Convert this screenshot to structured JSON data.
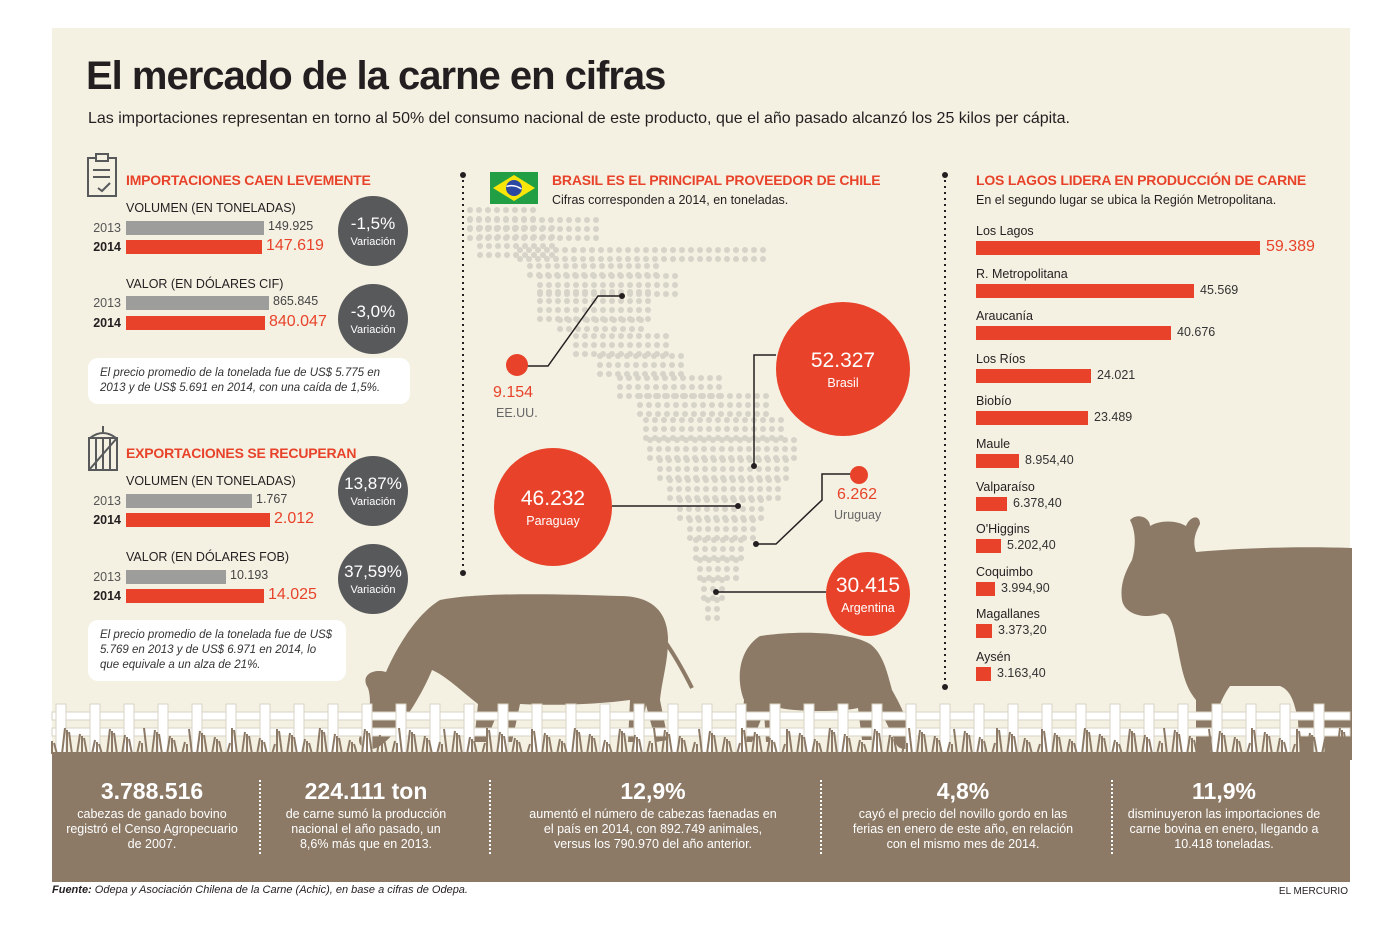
{
  "title": "El mercado de la carne en cifras",
  "subtitle": "Las importaciones representan en torno al 50% del consumo nacional de este producto, que el año pasado alcanzó los 25 kilos per cápita.",
  "imports": {
    "heading": "IMPORTACIONES CAEN LEVEMENTE",
    "volume_label": "VOLUMEN (EN TONELADAS)",
    "value_label": "VALOR (EN DÓLARES CIF)",
    "note": "El precio promedio de la tonelada fue de US$ 5.775 en 2013 y de US$ 5.691 en 2014, con una caída de 1,5%."
  },
  "exports": {
    "heading": "EXPORTACIONES SE RECUPERAN",
    "volume_label": "VOLUMEN (EN TONELADAS)",
    "value_label": "VALOR (EN DÓLARES FOB)",
    "note": "El precio promedio de la tonelada fue de US$ 5.769 en 2013 y de US$ 6.971 en 2014, lo que equivale a un alza de 21%."
  },
  "variation_label": "Variación",
  "suppliers": {
    "heading": "BRASIL ES EL PRINCIPAL PROVEEDOR DE CHILE",
    "subheading": "Cifras corresponden a 2014, en toneladas."
  },
  "regions": {
    "heading": "LOS LAGOS LIDERA EN PRODUCCIÓN DE CARNE",
    "subheading": "En el segundo lugar se ubica la Región Metropolitana."
  },
  "chart_data": [
    {
      "type": "bar",
      "title": "IMPORTACIONES CAEN LEVEMENTE",
      "subtitle": "VOLUMEN (EN TONELADAS)",
      "categories": [
        "2013",
        "2014"
      ],
      "values": [
        149925,
        147619
      ],
      "labels": [
        "149.925",
        "147.619"
      ],
      "variation": "-1,5%"
    },
    {
      "type": "bar",
      "title": "IMPORTACIONES CAEN LEVEMENTE",
      "subtitle": "VALOR (EN DÓLARES CIF)",
      "categories": [
        "2013",
        "2014"
      ],
      "values": [
        865845,
        840047
      ],
      "labels": [
        "865.845",
        "840.047"
      ],
      "variation": "-3,0%"
    },
    {
      "type": "bar",
      "title": "EXPORTACIONES SE RECUPERAN",
      "subtitle": "VOLUMEN (EN TONELADAS)",
      "categories": [
        "2013",
        "2014"
      ],
      "values": [
        1767,
        2012
      ],
      "labels": [
        "1.767",
        "2.012"
      ],
      "variation": "13,87%"
    },
    {
      "type": "bar",
      "title": "EXPORTACIONES SE RECUPERAN",
      "subtitle": "VALOR (EN DÓLARES FOB)",
      "categories": [
        "2013",
        "2014"
      ],
      "values": [
        10193,
        14025
      ],
      "labels": [
        "10.193",
        "14.025"
      ],
      "variation": "37,59%"
    },
    {
      "type": "scatter",
      "title": "BRASIL ES EL PRINCIPAL PROVEEDOR DE CHILE",
      "subtitle": "Cifras corresponden a 2014, en toneladas.",
      "categories": [
        "Brasil",
        "Paraguay",
        "Argentina",
        "EE.UU.",
        "Uruguay"
      ],
      "values": [
        52327,
        46232,
        30415,
        9154,
        6262
      ],
      "labels": [
        "52.327",
        "46.232",
        "30.415",
        "9.154",
        "6.262"
      ]
    },
    {
      "type": "bar",
      "orientation": "horizontal",
      "title": "LOS LAGOS LIDERA EN PRODUCCIÓN DE CARNE",
      "subtitle": "En el segundo lugar se ubica la Región Metropolitana.",
      "categories": [
        "Los Lagos",
        "R. Metropolitana",
        "Araucanía",
        "Los Ríos",
        "Biobío",
        "Maule",
        "Valparaíso",
        "O'Higgins",
        "Coquimbo",
        "Magallanes",
        "Aysén"
      ],
      "values": [
        59389,
        45569,
        40676,
        24021,
        23489,
        8954.4,
        6378.4,
        5202.4,
        3994.9,
        3373.2,
        3163.4
      ],
      "labels": [
        "59.389",
        "45.569",
        "40.676",
        "24.021",
        "23.489",
        "8.954,40",
        "6.378,40",
        "5.202,40",
        "3.994,90",
        "3.373,20",
        "3.163,40"
      ]
    }
  ],
  "stats": [
    {
      "big": "3.788.516",
      "text": "cabezas de ganado bovino registró el Censo Agropecuario de 2007."
    },
    {
      "big": "224.111 ton",
      "text": "de carne sumó la producción nacional el año pasado, un 8,6% más que en 2013."
    },
    {
      "big": "12,9%",
      "text": "aumentó el número de cabezas faenadas en el país en 2014, con 892.749 animales, versus los 790.970 del año anterior."
    },
    {
      "big": "4,8%",
      "text": "cayó el precio del novillo gordo en las ferias en enero de este año, en relación con el mismo mes de 2014."
    },
    {
      "big": "11,9%",
      "text": "disminuyeron las importaciones de carne bovina en enero, llegando a 10.418 toneladas."
    }
  ],
  "source_label": "Fuente:",
  "source_text": " Odepa y Asociación Chilena de la Carne (Achic), en base a cifras de Odepa.",
  "brand": "EL MERCURIO",
  "colors": {
    "accent": "#e8432a",
    "gray": "#9d9d9c",
    "dark": "#58595b",
    "earth": "#8c7a66",
    "background": "#f4f1e3"
  }
}
